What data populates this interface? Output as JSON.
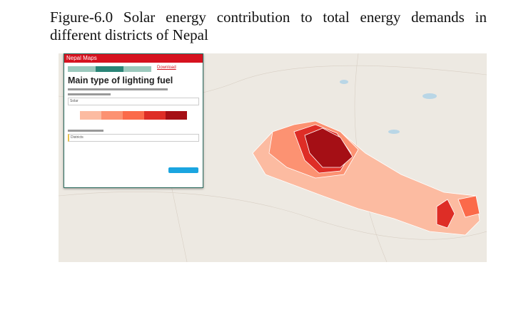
{
  "caption": "Figure-6.0 Solar energy contribution to total energy demands in different districts  of Nepal",
  "panel": {
    "header": "Nepal Maps",
    "download": "Download",
    "title": "Main type of lighting fuel",
    "indicator": "Solar",
    "geography": "Districts"
  },
  "legend_colors": [
    "#fcbba1",
    "#fc9272",
    "#fb6a4a",
    "#de2d26",
    "#a50f15"
  ],
  "map_colors": {
    "background": "#ede9e2",
    "panel_header": "#d6121f"
  }
}
